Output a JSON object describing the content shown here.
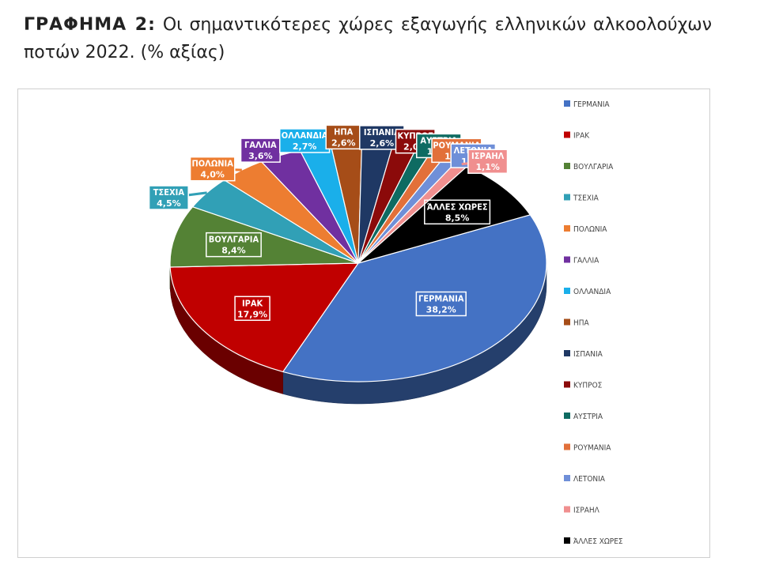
{
  "caption": {
    "prefix": "ΓΡΑΦΗΜΑ 2:",
    "text": "Οι σημαντικότερες χώρες εξαγωγής ελληνικών αλκοολούχων ποτών 2022. (% αξίας)"
  },
  "chart_data": {
    "type": "pie",
    "three_d": true,
    "legend_position": "right",
    "slices": [
      {
        "label": "ΓΕΡΜΑΝΙΑ",
        "value": 38.2,
        "value_text": "38,2%",
        "color": "#4472C4"
      },
      {
        "label": "ΙΡΑΚ",
        "value": 17.9,
        "value_text": "17,9%",
        "color": "#C00000"
      },
      {
        "label": "ΒΟΥΛΓΑΡΙΑ",
        "value": 8.4,
        "value_text": "8,4%",
        "color": "#548235"
      },
      {
        "label": "ΤΣΕΧΙΑ",
        "value": 4.5,
        "value_text": "4,5%",
        "color": "#31A0B6"
      },
      {
        "label": "ΠΟΛΩΝΙΑ",
        "value": 4.0,
        "value_text": "4,0%",
        "color": "#ED7D31"
      },
      {
        "label": "ΓΑΛΛΙΑ",
        "value": 3.6,
        "value_text": "3,6%",
        "color": "#7030A0"
      },
      {
        "label": "ΟΛΛΑΝΔΙΑ",
        "value": 2.7,
        "value_text": "2,7%",
        "color": "#1AAFEA"
      },
      {
        "label": "ΗΠΑ",
        "value": 2.6,
        "value_text": "2,6%",
        "color": "#A64D18"
      },
      {
        "label": "ΙΣΠΑΝΙΑ",
        "value": 2.6,
        "value_text": "2,6%",
        "color": "#1F3864"
      },
      {
        "label": "ΚΥΠΡΟΣ",
        "value": 2.0,
        "value_text": "2,0%",
        "color": "#8B0A0A"
      },
      {
        "label": "ΑΥΣΤΡΙΑ",
        "value": 1.3,
        "value_text": "1,3%",
        "color": "#0E6B62"
      },
      {
        "label": "ΡΟΥΜΑΝΙΑ",
        "value": 1.3,
        "value_text": "1,3%",
        "color": "#E2703A"
      },
      {
        "label": "ΛΕΤΟΝΙΑ",
        "value": 1.2,
        "value_text": "1,2%",
        "color": "#6F8FD8"
      },
      {
        "label": "ΙΣΡΑΗΛ",
        "value": 1.1,
        "value_text": "1,1%",
        "color": "#F08F8F"
      },
      {
        "label": "ΆΛΛΕΣ ΧΩΡΕΣ",
        "value": 8.5,
        "value_text": "8,5%",
        "color": "#000000"
      }
    ],
    "legend": [
      "ΓΕΡΜΑΝΙΑ",
      "ΙΡΑΚ",
      "ΒΟΥΛΓΑΡΙΑ",
      "ΤΣΕΧΙΑ",
      "ΠΟΛΩΝΙΑ",
      "ΓΑΛΛΙΑ",
      "ΟΛΛΑΝΔΙΑ",
      "ΗΠΑ",
      "ΙΣΠΑΝΙΑ",
      "ΚΥΠΡΟΣ",
      "ΑΥΣΤΡΙΑ",
      "ΡΟΥΜΑΝΙΑ",
      "ΛΕΤΟΝΙΑ",
      "ΙΣΡΑΗΛ",
      "ΆΛΛΕΣ ΧΩΡΕΣ"
    ]
  }
}
